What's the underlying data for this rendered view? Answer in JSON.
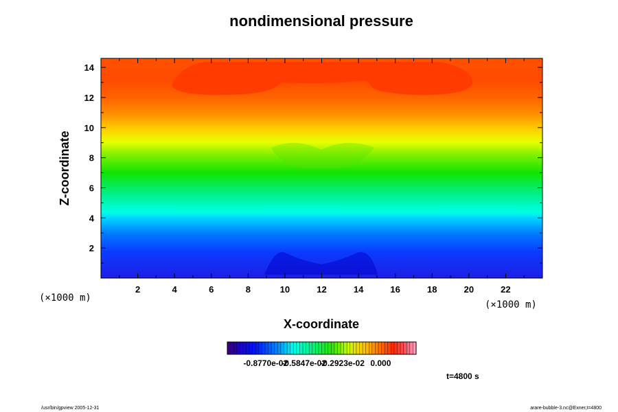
{
  "chart_data": {
    "type": "heatmap",
    "title": "nondimensional pressure",
    "xlabel": "X-coordinate",
    "ylabel": "Z-coordinate",
    "xlim": [
      0,
      24
    ],
    "ylim": [
      0,
      14.6
    ],
    "x_ticks": [
      "2",
      "4",
      "6",
      "8",
      "10",
      "12",
      "14",
      "16",
      "18",
      "20",
      "22"
    ],
    "y_ticks": [
      "2",
      "4",
      "6",
      "8",
      "10",
      "12",
      "14"
    ],
    "x_unit": "(×1000 m)",
    "y_unit": "(×1000 m)",
    "colorbar_labels": [
      "-0.8770e-02",
      "-0.5847e-02",
      "-0.2923e-02",
      "0.000"
    ],
    "colorbar_range": [
      -0.01169,
      0.0027
    ],
    "time_label": "t=4800 s",
    "footer_left": "/usr/bin/gpview 2005-12-31",
    "footer_right": "arare-bubble-3.nc@Exner,t=4800"
  }
}
